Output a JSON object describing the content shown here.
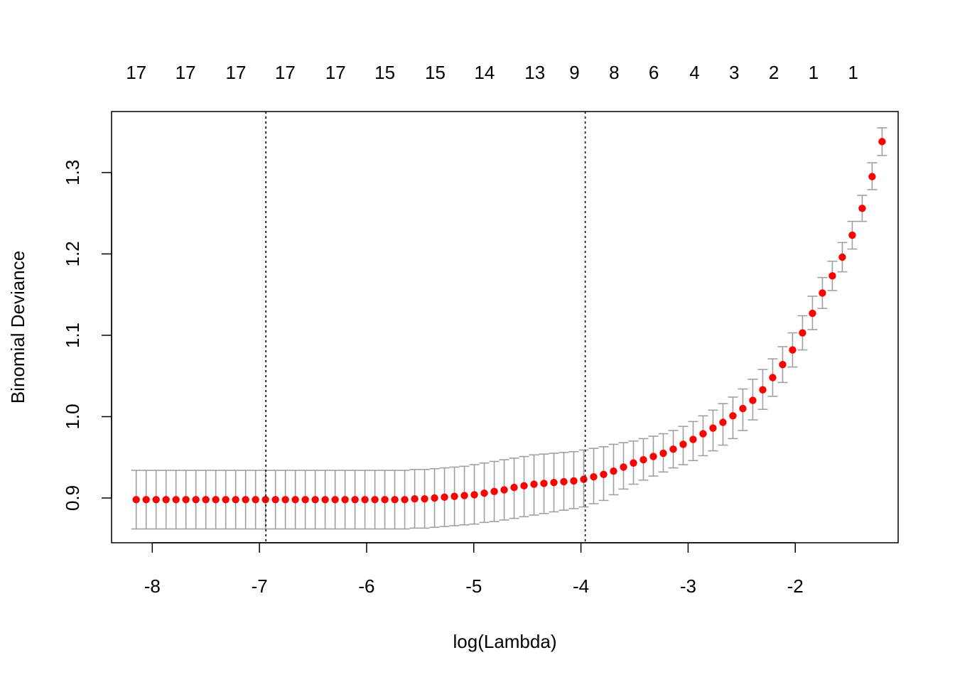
{
  "chart_data": {
    "type": "scatter",
    "title": "",
    "xlabel": "log(Lambda)",
    "ylabel": "Binomial Deviance",
    "xlim": [
      -8.38,
      -1.04
    ],
    "ylim": [
      0.845,
      1.375
    ],
    "x_ticks": [
      -8,
      -7,
      -6,
      -5,
      -4,
      -3,
      -2
    ],
    "x_tick_labels": [
      "-8",
      "-7",
      "-6",
      "-5",
      "-4",
      "-3",
      "-2"
    ],
    "y_ticks": [
      0.9,
      1.0,
      1.1,
      1.2,
      1.3
    ],
    "y_tick_labels": [
      "0.9",
      "1.0",
      "1.1",
      "1.2",
      "1.3"
    ],
    "top_labels": [
      {
        "x": -8.15,
        "label": "17"
      },
      {
        "x": -7.69,
        "label": "17"
      },
      {
        "x": -7.22,
        "label": "17"
      },
      {
        "x": -6.76,
        "label": "17"
      },
      {
        "x": -6.29,
        "label": "17"
      },
      {
        "x": -5.83,
        "label": "15"
      },
      {
        "x": -5.36,
        "label": "15"
      },
      {
        "x": -4.9,
        "label": "14"
      },
      {
        "x": -4.43,
        "label": "13"
      },
      {
        "x": -4.06,
        "label": "9"
      },
      {
        "x": -3.69,
        "label": "8"
      },
      {
        "x": -3.32,
        "label": "6"
      },
      {
        "x": -2.94,
        "label": "4"
      },
      {
        "x": -2.57,
        "label": "3"
      },
      {
        "x": -2.2,
        "label": "2"
      },
      {
        "x": -1.83,
        "label": "1"
      },
      {
        "x": -1.46,
        "label": "1"
      }
    ],
    "vlines": [
      -6.94,
      -3.96
    ],
    "vline_style": "dotted",
    "grid": false,
    "colors": {
      "point": "#ff0000",
      "errorbar": "#a0a0a0",
      "axis": "#000000"
    },
    "x_first": -8.15,
    "x_step": 0.0928,
    "series": [
      {
        "values": [
          0.898,
          0.898,
          0.898,
          0.898,
          0.898,
          0.898,
          0.898,
          0.898,
          0.898,
          0.898,
          0.898,
          0.898,
          0.898,
          0.898,
          0.898,
          0.898,
          0.898,
          0.898,
          0.898,
          0.898,
          0.898,
          0.898,
          0.898,
          0.898,
          0.898,
          0.898,
          0.898,
          0.898,
          0.899,
          0.899,
          0.9,
          0.901,
          0.902,
          0.903,
          0.904,
          0.906,
          0.908,
          0.91,
          0.913,
          0.915,
          0.917,
          0.918,
          0.919,
          0.92,
          0.921,
          0.923,
          0.926,
          0.929,
          0.933,
          0.938,
          0.943,
          0.947,
          0.951,
          0.955,
          0.96,
          0.966,
          0.972,
          0.979,
          0.986,
          0.993,
          1.001,
          1.01,
          1.02,
          1.033,
          1.048,
          1.064,
          1.082,
          1.103,
          1.127,
          1.152,
          1.173,
          1.196,
          1.223,
          1.256,
          1.295,
          1.338
        ],
        "lower": [
          0.862,
          0.862,
          0.862,
          0.862,
          0.862,
          0.862,
          0.862,
          0.862,
          0.862,
          0.862,
          0.862,
          0.862,
          0.862,
          0.862,
          0.862,
          0.862,
          0.862,
          0.862,
          0.862,
          0.862,
          0.862,
          0.862,
          0.862,
          0.862,
          0.862,
          0.862,
          0.862,
          0.862,
          0.863,
          0.863,
          0.864,
          0.865,
          0.866,
          0.867,
          0.868,
          0.87,
          0.871,
          0.873,
          0.875,
          0.877,
          0.879,
          0.881,
          0.883,
          0.885,
          0.887,
          0.889,
          0.893,
          0.897,
          0.904,
          0.911,
          0.917,
          0.922,
          0.927,
          0.932,
          0.937,
          0.941,
          0.946,
          0.952,
          0.958,
          0.965,
          0.973,
          0.983,
          0.996,
          1.009,
          1.025,
          1.042,
          1.061,
          1.082,
          1.107,
          1.133,
          1.155,
          1.178,
          1.206,
          1.24,
          1.279,
          1.321
        ],
        "upper": [
          0.934,
          0.934,
          0.934,
          0.934,
          0.934,
          0.934,
          0.934,
          0.934,
          0.934,
          0.934,
          0.934,
          0.934,
          0.934,
          0.934,
          0.934,
          0.934,
          0.934,
          0.934,
          0.934,
          0.934,
          0.934,
          0.934,
          0.934,
          0.934,
          0.934,
          0.934,
          0.934,
          0.934,
          0.935,
          0.935,
          0.936,
          0.937,
          0.938,
          0.939,
          0.941,
          0.943,
          0.945,
          0.947,
          0.949,
          0.951,
          0.953,
          0.954,
          0.955,
          0.956,
          0.957,
          0.959,
          0.961,
          0.963,
          0.966,
          0.968,
          0.97,
          0.973,
          0.976,
          0.979,
          0.983,
          0.988,
          0.994,
          1.001,
          1.008,
          1.016,
          1.024,
          1.034,
          1.046,
          1.058,
          1.071,
          1.086,
          1.103,
          1.124,
          1.148,
          1.171,
          1.191,
          1.214,
          1.24,
          1.272,
          1.312,
          1.355
        ]
      }
    ]
  }
}
